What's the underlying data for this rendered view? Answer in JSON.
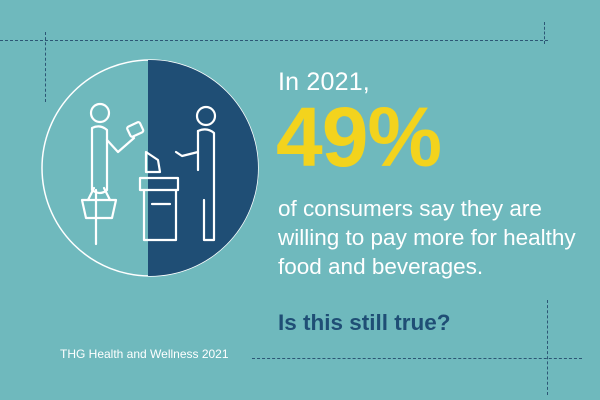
{
  "intro": "In 2021,",
  "percent": "49%",
  "body": "of consumers say they are willing to pay more for healthy food and beverages.",
  "question": "Is this still true?",
  "source": "THG Health and Wellness 2021",
  "illustration": {
    "icons": [
      "shopper-with-basket-icon",
      "cashier-at-register-icon"
    ],
    "half_fill_color": "#1f4e75",
    "line_color": "#ffffff"
  },
  "colors": {
    "background": "#6fb9bd",
    "accent_yellow": "#f3d31d",
    "dark_blue": "#1f4e75",
    "dash": "#2c5675"
  }
}
